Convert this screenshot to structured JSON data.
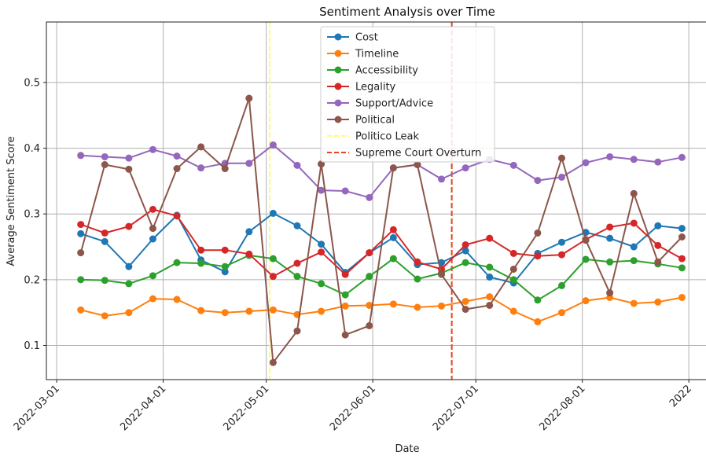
{
  "chart_data": {
    "type": "line",
    "title": "Sentiment Analysis over Time",
    "xlabel": "Date",
    "ylabel": "Average Sentiment Score",
    "ylim": [
      0.048,
      0.592
    ],
    "xlim": [
      "2022-02-26",
      "2022-09-06"
    ],
    "yticks": [
      0.1,
      0.2,
      0.3,
      0.4,
      0.5
    ],
    "xticks": [
      "2022-03-01",
      "2022-04-01",
      "2022-05-01",
      "2022-06-01",
      "2022-07-01",
      "2022-08-01",
      "2022-09-01"
    ],
    "xtick_labels": [
      "2022-03-01",
      "2022-04-01",
      "2022-05-01",
      "2022-06-01",
      "2022-07-01",
      "2022-08-01",
      "2022"
    ],
    "grid": true,
    "legend_position": "top-center",
    "x": [
      "2022-03-08",
      "2022-03-15",
      "2022-03-22",
      "2022-03-29",
      "2022-04-05",
      "2022-04-12",
      "2022-04-19",
      "2022-04-26",
      "2022-05-03",
      "2022-05-10",
      "2022-05-17",
      "2022-05-24",
      "2022-05-31",
      "2022-06-07",
      "2022-06-14",
      "2022-06-21",
      "2022-06-28",
      "2022-07-05",
      "2022-07-12",
      "2022-07-19",
      "2022-07-26",
      "2022-08-02",
      "2022-08-09",
      "2022-08-16",
      "2022-08-23",
      "2022-08-30"
    ],
    "series": [
      {
        "name": "Cost",
        "color": "#1f77b4",
        "values": [
          0.27,
          0.258,
          0.22,
          0.262,
          0.298,
          0.23,
          0.212,
          0.273,
          0.301,
          0.282,
          0.254,
          0.211,
          0.241,
          0.264,
          0.223,
          0.226,
          0.244,
          0.204,
          0.195,
          0.24,
          0.257,
          0.272,
          0.263,
          0.25,
          0.282,
          0.278
        ]
      },
      {
        "name": "Timeline",
        "color": "#ff7f0e",
        "values": [
          0.154,
          0.145,
          0.15,
          0.171,
          0.17,
          0.153,
          0.15,
          0.152,
          0.154,
          0.147,
          0.152,
          0.16,
          0.161,
          0.163,
          0.158,
          0.16,
          0.167,
          0.174,
          0.152,
          0.136,
          0.15,
          0.168,
          0.173,
          0.164,
          0.166,
          0.173
        ]
      },
      {
        "name": "Accessibility",
        "color": "#2ca02c",
        "values": [
          0.2,
          0.199,
          0.194,
          0.206,
          0.226,
          0.225,
          0.22,
          0.237,
          0.232,
          0.205,
          0.194,
          0.177,
          0.205,
          0.232,
          0.201,
          0.21,
          0.226,
          0.219,
          0.2,
          0.169,
          0.191,
          0.231,
          0.227,
          0.229,
          0.224,
          0.218
        ]
      },
      {
        "name": "Legality",
        "color": "#d62728",
        "values": [
          0.284,
          0.271,
          0.281,
          0.307,
          0.297,
          0.245,
          0.245,
          0.239,
          0.205,
          0.225,
          0.242,
          0.208,
          0.241,
          0.276,
          0.227,
          0.216,
          0.253,
          0.263,
          0.24,
          0.236,
          0.238,
          0.261,
          0.28,
          0.286,
          0.252,
          0.232
        ]
      },
      {
        "name": "Support/Advice",
        "color": "#9467bd",
        "values": [
          0.389,
          0.387,
          0.385,
          0.398,
          0.388,
          0.37,
          0.377,
          0.377,
          0.405,
          0.374,
          0.336,
          0.335,
          0.325,
          0.37,
          0.375,
          0.353,
          0.37,
          0.383,
          0.374,
          0.351,
          0.356,
          0.378,
          0.387,
          0.383,
          0.379,
          0.386
        ]
      },
      {
        "name": "Political",
        "color": "#8c564b",
        "values": [
          0.241,
          0.375,
          0.368,
          0.278,
          0.369,
          0.402,
          0.369,
          0.476,
          0.074,
          0.122,
          0.376,
          0.116,
          0.13,
          0.37,
          0.375,
          0.208,
          0.155,
          0.161,
          0.216,
          0.271,
          0.385,
          0.26,
          0.18,
          0.331,
          0.227,
          0.265
        ]
      }
    ],
    "vlines": [
      {
        "name": "Politico Leak",
        "x": "2022-05-02",
        "color": "#ffff66",
        "style": "dashed"
      },
      {
        "name": "Supreme Court Overturn",
        "x": "2022-06-24",
        "color": "#e8451e",
        "style": "dashed"
      }
    ]
  }
}
